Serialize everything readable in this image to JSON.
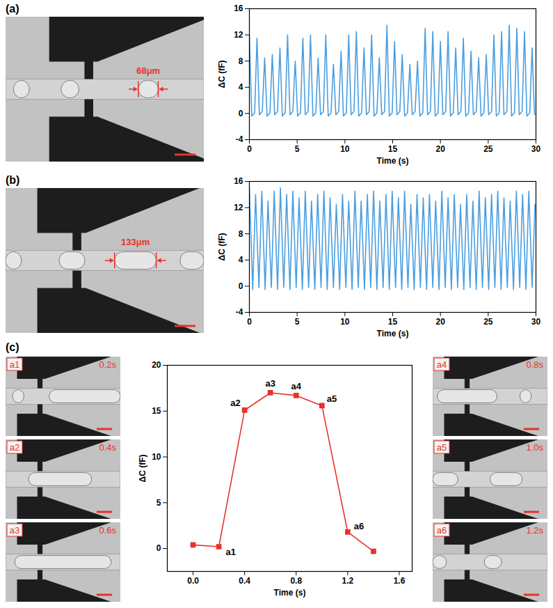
{
  "chart_data": [
    {
      "type": "line",
      "xlabel": "Time (s)",
      "ylabel": "ΔC (fF)",
      "color": "#4a9ee0",
      "line_style": "solid",
      "x": [
        0,
        0.25,
        0.55,
        0.8,
        1.05,
        1.35,
        1.6,
        1.85,
        2.15,
        2.4,
        2.65,
        2.95,
        3.2,
        3.45,
        3.75,
        4,
        4.25,
        4.55,
        4.8,
        5.05,
        5.35,
        5.6,
        5.85,
        6.15,
        6.4,
        6.65,
        6.95,
        7.2,
        7.45,
        7.75,
        8,
        8.25,
        8.55,
        8.8,
        9.05,
        9.35,
        9.6,
        9.85,
        10.15,
        10.4,
        10.65,
        10.95,
        11.2,
        11.45,
        11.75,
        12,
        12.25,
        12.55,
        12.8,
        13.05,
        13.35,
        13.6,
        13.85,
        14.15,
        14.4,
        14.65,
        14.95,
        15.2,
        15.45,
        15.75,
        16,
        16.25,
        16.55,
        16.8,
        17.05,
        17.35,
        17.6,
        17.85,
        18.15,
        18.4,
        18.65,
        18.95,
        19.2,
        19.45,
        19.75,
        20,
        20.25,
        20.55,
        20.8,
        21.05,
        21.35,
        21.6,
        21.85,
        22.15,
        22.4,
        22.65,
        22.95,
        23.2,
        23.45,
        23.75,
        24,
        24.25,
        24.55,
        24.8,
        25.05,
        25.35,
        25.6,
        25.85,
        26.15,
        26.4,
        26.65,
        26.95,
        27.2,
        27.45,
        27.75,
        28,
        28.25,
        28.55,
        28.8,
        29.05,
        29.35,
        29.6,
        29.85
      ],
      "values": [
        12,
        -0.4,
        0.1,
        11.5,
        -0.2,
        0.3,
        8.5,
        -0.4,
        0.1,
        9,
        -0.2,
        0.3,
        10,
        -0.4,
        0.1,
        12,
        -0.2,
        0.3,
        8,
        -0.4,
        0.1,
        11.5,
        -0.2,
        0.3,
        12,
        -0.4,
        0.1,
        8.5,
        -0.2,
        0.3,
        12,
        -0.4,
        0.1,
        7.5,
        -0.2,
        0.3,
        9.5,
        -0.4,
        0.1,
        12,
        -0.2,
        0.3,
        12.5,
        -0.4,
        0.1,
        10,
        -0.2,
        0.3,
        12,
        -0.4,
        0.1,
        8.5,
        -0.2,
        0.3,
        13.5,
        -0.4,
        0.1,
        11,
        -0.2,
        0.3,
        9,
        -0.4,
        0.1,
        7.5,
        -0.2,
        0.3,
        8,
        -0.4,
        0.1,
        13,
        -0.2,
        0.3,
        12.5,
        -0.4,
        0.1,
        11,
        -0.2,
        0.3,
        12.5,
        -0.4,
        0.1,
        10,
        -0.2,
        0.3,
        11.5,
        -0.4,
        0.1,
        9.5,
        -0.2,
        0.3,
        8.5,
        -0.4,
        0.1,
        9,
        -0.2,
        0.3,
        12,
        -0.4,
        0.1,
        12.5,
        -0.2,
        0.3,
        13.5,
        -0.4,
        0.1,
        13,
        -0.2,
        0.3,
        12.5,
        -0.4,
        0.1,
        10,
        -0.2
      ],
      "xlim": [
        0,
        30
      ],
      "xticks": [
        0,
        5,
        10,
        15,
        20,
        25,
        30
      ],
      "ylim": [
        -4,
        16
      ],
      "yticks": [
        -4,
        0,
        4,
        8,
        12,
        16
      ],
      "grid": false
    },
    {
      "type": "line",
      "xlabel": "Time (s)",
      "ylabel": "ΔC (fF)",
      "color": "#4a9ee0",
      "line_style": "solid",
      "x": [
        0,
        0.35,
        0.65,
        1,
        1.3,
        1.65,
        1.95,
        2.3,
        2.6,
        2.95,
        3.25,
        3.6,
        3.9,
        4.25,
        4.55,
        4.9,
        5.2,
        5.55,
        5.85,
        6.2,
        6.5,
        6.85,
        7.15,
        7.5,
        7.8,
        8.15,
        8.45,
        8.8,
        9.1,
        9.45,
        9.75,
        10.1,
        10.4,
        10.75,
        11.05,
        11.4,
        11.7,
        12.05,
        12.35,
        12.7,
        13,
        13.35,
        13.65,
        14,
        14.3,
        14.65,
        14.95,
        15.3,
        15.6,
        15.95,
        16.25,
        16.6,
        16.9,
        17.25,
        17.55,
        17.9,
        18.2,
        18.55,
        18.85,
        19.2,
        19.5,
        19.85,
        20.15,
        20.5,
        20.8,
        21.15,
        21.45,
        21.8,
        22.1,
        22.45,
        22.75,
        23.1,
        23.4,
        23.75,
        24.05,
        24.4,
        24.7,
        25.05,
        25.35,
        25.7,
        26,
        26.35,
        26.65,
        27,
        27.3,
        27.65,
        27.95,
        28.3,
        28.6,
        28.95,
        29.25,
        29.6,
        29.9
      ],
      "values": [
        15,
        -0.5,
        14,
        -0.2,
        14.5,
        -0.5,
        13,
        -0.2,
        14.5,
        -0.5,
        15,
        -0.2,
        14,
        -0.5,
        14.5,
        -0.2,
        13.5,
        -0.5,
        14.5,
        -0.2,
        13,
        -0.5,
        14,
        -0.2,
        14.5,
        -0.5,
        13.5,
        -0.2,
        12.5,
        -0.5,
        14,
        -0.2,
        13,
        -0.5,
        14.5,
        -0.2,
        13,
        -0.5,
        14,
        -0.2,
        14.5,
        -0.5,
        13,
        -0.2,
        14,
        -0.5,
        14.5,
        -0.2,
        13.5,
        -0.5,
        14.5,
        -0.2,
        12.5,
        -0.5,
        14,
        -0.2,
        13.5,
        -0.5,
        14,
        -0.2,
        13,
        -0.5,
        14.5,
        -0.2,
        13.5,
        -0.5,
        14,
        -0.2,
        12.5,
        -0.5,
        14,
        -0.2,
        13,
        -0.5,
        14.5,
        -0.2,
        13.5,
        -0.5,
        14,
        -0.2,
        14.5,
        -0.5,
        13.5,
        -0.2,
        13,
        -0.5,
        14.5,
        -0.2,
        14,
        -0.5,
        14.5,
        -0.2,
        12.5
      ],
      "xlim": [
        0,
        30
      ],
      "xticks": [
        0,
        5,
        10,
        15,
        20,
        25,
        30
      ],
      "ylim": [
        -4,
        16
      ],
      "yticks": [
        -4,
        0,
        4,
        8,
        12,
        16
      ],
      "grid": false
    },
    {
      "type": "line",
      "xlabel": "Time (s)",
      "ylabel": "ΔC (fF)",
      "color": "#e8322b",
      "marker": "square",
      "line_style": "solid",
      "x": [
        0,
        0.2,
        0.4,
        0.6,
        0.8,
        1.0,
        1.2,
        1.4
      ],
      "values": [
        0.4,
        0.2,
        15.1,
        17,
        16.7,
        15.6,
        1.8,
        -0.3
      ],
      "point_labels": [
        null,
        "a1",
        "a2",
        "a3",
        "a4",
        "a5",
        "a6",
        null
      ],
      "xlim": [
        -0.2,
        1.7
      ],
      "xticks": [
        {
          "value": 0,
          "label": "0.0"
        },
        {
          "value": 0.4,
          "label": "0.4"
        },
        {
          "value": 0.8,
          "label": "0.8"
        },
        {
          "value": 1.2,
          "label": "1.2"
        },
        {
          "value": 1.6,
          "label": "1.6"
        }
      ],
      "ylim": [
        -2.5,
        20
      ],
      "yticks": [
        0,
        5,
        10,
        15,
        20
      ],
      "grid": false
    }
  ],
  "micrographs": [
    {
      "panel": "(a)",
      "measurement": "68μm"
    },
    {
      "panel": "(b)",
      "measurement": "133μm"
    },
    {
      "panel": "(c)",
      "frames": [
        {
          "label": "a1",
          "time": "0.2s"
        },
        {
          "label": "a2",
          "time": "0.4s"
        },
        {
          "label": "a3",
          "time": "0.6s"
        },
        {
          "label": "a4",
          "time": "0.8s"
        },
        {
          "label": "a5",
          "time": "1.0s"
        },
        {
          "label": "a6",
          "time": "1.2s"
        }
      ]
    }
  ]
}
